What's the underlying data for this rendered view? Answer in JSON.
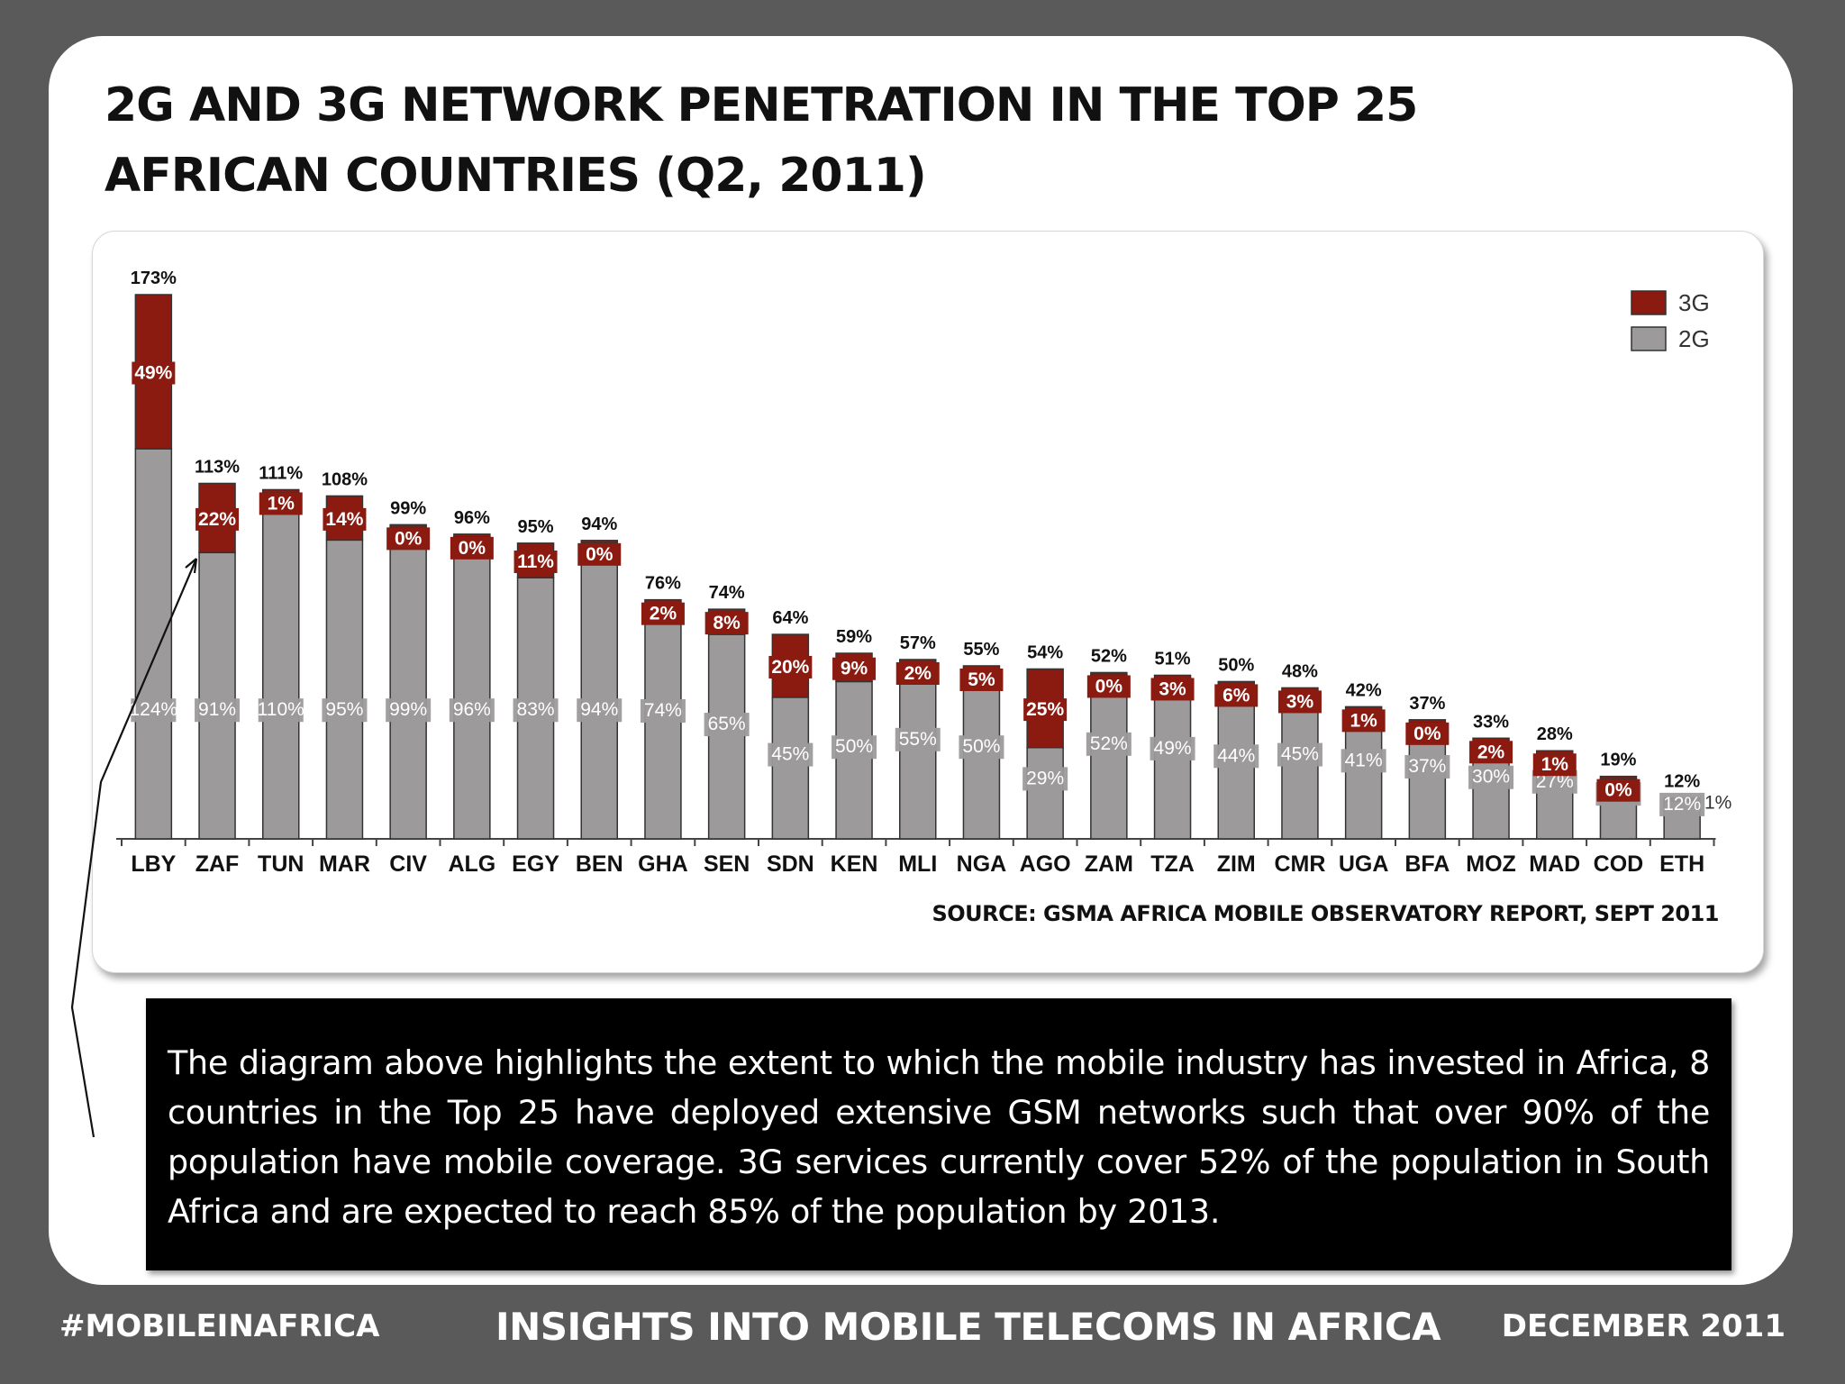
{
  "title": {
    "line1": "2G AND 3G NETWORK PENETRATION IN THE TOP 25",
    "line2": "AFRICAN COUNTRIES (Q2, 2011)"
  },
  "source": "SOURCE: GSMA AFRICA MOBILE OBSERVATORY REPORT, SEPT 2011",
  "description": "The diagram above highlights the extent to which the mobile industry has invested in Africa, 8 countries in the Top 25 have deployed extensive GSM networks such that over 90% of the population have mobile coverage. 3G services currently cover 52% of the population in South Africa and are expected to reach 85% of the population by 2013.",
  "footer": {
    "left": "#MOBILEINAFRICA",
    "center": "INSIGHTS INTO MOBILE TELECOMS IN AFRICA",
    "right": "DECEMBER 2011"
  },
  "colors": {
    "3G": "#8b1a10",
    "2G": "#9c9a9b",
    "background": "#5a5a5a"
  },
  "chart_data": {
    "type": "bar",
    "stacked": true,
    "categories": [
      "LBY",
      "ZAF",
      "TUN",
      "MAR",
      "CIV",
      "ALG",
      "EGY",
      "BEN",
      "GHA",
      "SEN",
      "SDN",
      "KEN",
      "MLI",
      "NGA",
      "AGO",
      "ZAM",
      "TZA",
      "ZIM",
      "CMR",
      "UGA",
      "BFA",
      "MOZ",
      "MAD",
      "COD",
      "ETH"
    ],
    "series": [
      {
        "name": "2G",
        "values": [
          124,
          91,
          110,
          95,
          99,
          96,
          83,
          94,
          74,
          65,
          45,
          50,
          55,
          50,
          29,
          52,
          49,
          44,
          45,
          41,
          37,
          30,
          27,
          19,
          12
        ]
      },
      {
        "name": "3G",
        "values": [
          49,
          22,
          1,
          14,
          0,
          0,
          11,
          0,
          2,
          8,
          20,
          9,
          2,
          5,
          25,
          0,
          3,
          6,
          3,
          1,
          0,
          2,
          1,
          0,
          1
        ]
      }
    ],
    "totals": [
      "173%",
      "113%",
      "111%",
      "108%",
      "99%",
      "96%",
      "95%",
      "94%",
      "76%",
      "74%",
      "64%",
      "59%",
      "57%",
      "55%",
      "54%",
      "52%",
      "51%",
      "50%",
      "48%",
      "42%",
      "37%",
      "33%",
      "28%",
      "19%",
      "12%"
    ],
    "value_suffix": "%",
    "legend": [
      "3G",
      "2G"
    ],
    "legend_position": "top-right",
    "ylim": [
      0,
      173
    ],
    "grid": false
  }
}
